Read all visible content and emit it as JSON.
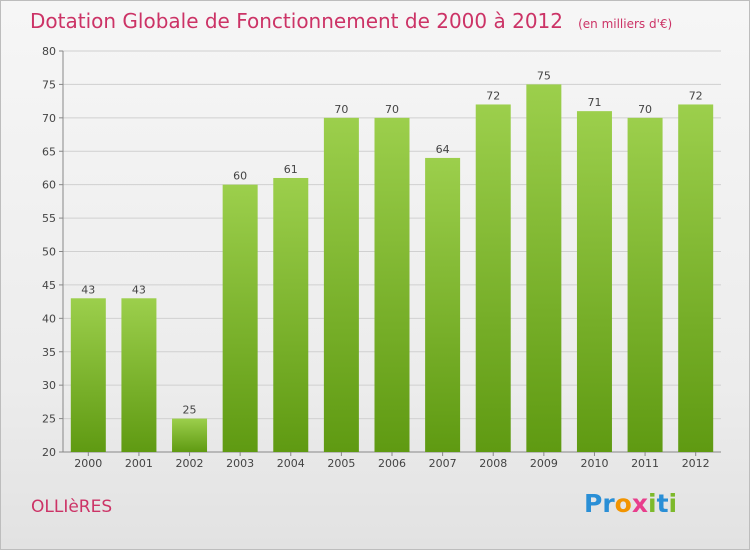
{
  "header": {
    "title": "Dotation Globale de Fonctionnement de 2000 à 2012",
    "subtitle": "(en milliers d'€)"
  },
  "footer": {
    "commune": "OLLIèRES",
    "logo_text": "Proxiti",
    "logo_colors": [
      "#2a8fd6",
      "#2a8fd6",
      "#f29400",
      "#e83e8c",
      "#7db92b",
      "#2a8fd6",
      "#7db92b"
    ]
  },
  "chart_data": {
    "type": "bar",
    "categories": [
      "2000",
      "2001",
      "2002",
      "2003",
      "2004",
      "2005",
      "2006",
      "2007",
      "2008",
      "2009",
      "2010",
      "2011",
      "2012"
    ],
    "values": [
      43,
      43,
      25,
      60,
      61,
      70,
      70,
      64,
      72,
      75,
      71,
      70,
      72
    ],
    "data_labels": [
      "43",
      "43",
      "25",
      "60",
      "61",
      "70",
      "70",
      "64",
      "72",
      "75",
      "71",
      "70",
      "72"
    ],
    "yticks": [
      "20",
      "25",
      "30",
      "35",
      "40",
      "45",
      "50",
      "55",
      "60",
      "65",
      "70",
      "75",
      "80"
    ],
    "ylim": [
      20,
      80
    ],
    "grid": true,
    "bar_color_top": "#9ccf4c",
    "bar_color_bottom": "#5f9a12"
  }
}
